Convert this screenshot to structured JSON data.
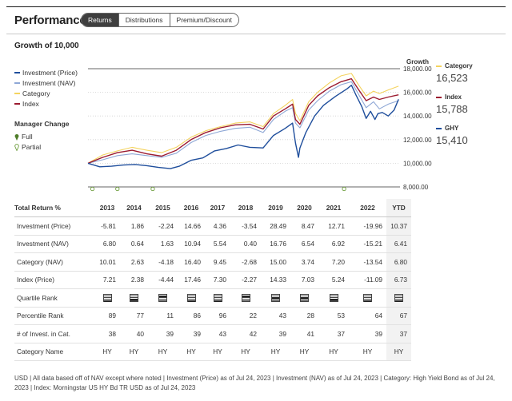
{
  "header": {
    "title": "Performance",
    "tabs": [
      {
        "label": "Returns",
        "active": true
      },
      {
        "label": "Distributions",
        "active": false
      },
      {
        "label": "Premium/Discount",
        "active": false
      }
    ]
  },
  "growth_title": "Growth of 10,000",
  "legend": [
    {
      "label": "Investment (Price)",
      "color": "#1f4e9c"
    },
    {
      "label": "Investment (NAV)",
      "color": "#8fa8d6"
    },
    {
      "label": "Category",
      "color": "#f4d35e"
    },
    {
      "label": "Index",
      "color": "#9b1b30"
    }
  ],
  "manager_change": {
    "title": "Manager Change",
    "full": "Full",
    "partial": "Partial",
    "full_color": "#4f7d2a",
    "partial_color": "#6b9c3a"
  },
  "axis_title": "Growth",
  "right_legend": [
    {
      "name": "Category",
      "value": "16,523",
      "color": "#f4d35e"
    },
    {
      "name": "Index",
      "value": "15,788",
      "color": "#9b1b30"
    },
    {
      "name": "GHY",
      "value": "15,410",
      "color": "#1f4e9c"
    }
  ],
  "chart_data": {
    "type": "line",
    "title": "Growth of 10,000",
    "ylabel": "Growth",
    "y_ticks": [
      "18,000.00",
      "16,000.00",
      "14,000.00",
      "12,000.00",
      "10,000.00",
      "8,000.00"
    ],
    "ylim": [
      8000,
      18000
    ],
    "x_range": [
      "2013-01",
      "2023-07"
    ],
    "series": [
      {
        "name": "Investment (Price)",
        "color": "#1f4e9c",
        "x": [
          2013.0,
          2013.4,
          2013.8,
          2014.2,
          2014.6,
          2015.0,
          2015.4,
          2015.8,
          2016.1,
          2016.5,
          2016.9,
          2017.3,
          2017.7,
          2018.1,
          2018.5,
          2018.95,
          2019.3,
          2019.7,
          2019.95,
          2020.05,
          2020.15,
          2020.2,
          2020.4,
          2020.7,
          2021.0,
          2021.4,
          2021.8,
          2021.95,
          2022.1,
          2022.3,
          2022.45,
          2022.6,
          2022.75,
          2022.85,
          2023.0,
          2023.2,
          2023.4,
          2023.55
        ],
        "values": [
          10000,
          9700,
          9750,
          9850,
          9900,
          9800,
          9650,
          9550,
          9750,
          10250,
          10450,
          11050,
          11250,
          11550,
          11350,
          11300,
          12350,
          12950,
          13400,
          11700,
          10500,
          11300,
          12600,
          14000,
          14900,
          15650,
          16300,
          16600,
          15800,
          14800,
          13800,
          14400,
          13700,
          14200,
          14300,
          14000,
          14500,
          15410
        ]
      },
      {
        "name": "Investment (NAV)",
        "color": "#8fa8d6",
        "x": [
          2013.0,
          2013.5,
          2014.0,
          2014.5,
          2015.0,
          2015.5,
          2016.0,
          2016.5,
          2017.0,
          2017.5,
          2018.0,
          2018.5,
          2018.95,
          2019.3,
          2019.7,
          2019.95,
          2020.05,
          2020.2,
          2020.5,
          2020.8,
          2021.2,
          2021.6,
          2021.95,
          2022.2,
          2022.45,
          2022.7,
          2022.9,
          2023.2,
          2023.55
        ],
        "values": [
          10000,
          10300,
          10650,
          10800,
          10650,
          10500,
          10850,
          11750,
          12350,
          12700,
          12950,
          13050,
          12600,
          13700,
          14400,
          14700,
          13400,
          13000,
          14500,
          15300,
          16100,
          16650,
          16900,
          15800,
          14700,
          15200,
          14600,
          15000,
          15300
        ]
      },
      {
        "name": "Category",
        "color": "#f4d35e",
        "x": [
          2013.0,
          2013.5,
          2014.0,
          2014.5,
          2015.0,
          2015.5,
          2016.0,
          2016.5,
          2017.0,
          2017.5,
          2018.0,
          2018.5,
          2018.95,
          2019.3,
          2019.7,
          2019.95,
          2020.05,
          2020.2,
          2020.5,
          2020.8,
          2021.2,
          2021.6,
          2021.95,
          2022.2,
          2022.45,
          2022.7,
          2022.9,
          2023.2,
          2023.55
        ],
        "values": [
          10000,
          10700,
          11050,
          11350,
          11100,
          10900,
          11350,
          12200,
          12750,
          13100,
          13400,
          13500,
          13100,
          14200,
          14900,
          15400,
          14200,
          13600,
          15200,
          16000,
          16800,
          17400,
          17600,
          16600,
          15700,
          16100,
          15900,
          16200,
          16523
        ]
      },
      {
        "name": "Index",
        "color": "#9b1b30",
        "x": [
          2013.0,
          2013.5,
          2014.0,
          2014.5,
          2015.0,
          2015.5,
          2016.0,
          2016.5,
          2017.0,
          2017.5,
          2018.0,
          2018.5,
          2018.95,
          2019.3,
          2019.7,
          2019.95,
          2020.05,
          2020.2,
          2020.5,
          2020.8,
          2021.2,
          2021.6,
          2021.95,
          2022.2,
          2022.45,
          2022.7,
          2022.9,
          2023.2,
          2023.55
        ],
        "values": [
          10000,
          10500,
          10900,
          11100,
          10800,
          10600,
          11100,
          12000,
          12600,
          13000,
          13250,
          13300,
          12900,
          14000,
          14600,
          15000,
          13700,
          13300,
          14900,
          15700,
          16400,
          16900,
          17150,
          16200,
          15300,
          15600,
          15400,
          15600,
          15788
        ]
      }
    ]
  },
  "table": {
    "header_label": "Total Return %",
    "columns": [
      "2013",
      "2014",
      "2015",
      "2016",
      "2017",
      "2018",
      "2019",
      "2020",
      "2021",
      "2022",
      "YTD"
    ],
    "rows": [
      {
        "label": "Investment (Price)",
        "values": [
          "-5.81",
          "1.86",
          "-2.24",
          "14.66",
          "4.36",
          "-3.54",
          "28.49",
          "8.47",
          "12.71",
          "-19.96",
          "10.37"
        ]
      },
      {
        "label": "Investment (NAV)",
        "values": [
          "6.80",
          "0.64",
          "1.63",
          "10.94",
          "5.54",
          "0.40",
          "16.76",
          "6.54",
          "6.92",
          "-15.21",
          "6.41"
        ]
      },
      {
        "label": "Category (NAV)",
        "values": [
          "10.01",
          "2.63",
          "-4.18",
          "16.40",
          "9.45",
          "-2.68",
          "15.00",
          "3.74",
          "7.20",
          "-13.54",
          "6.80"
        ]
      },
      {
        "label": "Index (Price)",
        "values": [
          "7.21",
          "2.38",
          "-4.44",
          "17.46",
          "7.30",
          "-2.27",
          "14.33",
          "7.03",
          "5.24",
          "-11.09",
          "6.73"
        ]
      },
      {
        "label": "Quartile Rank",
        "icon": "quartile-rank-icon",
        "quartiles": [
          4,
          3,
          1,
          4,
          4,
          1,
          2,
          2,
          3,
          4,
          4
        ]
      },
      {
        "label": "Percentile Rank",
        "values": [
          "89",
          "77",
          "11",
          "86",
          "96",
          "22",
          "43",
          "28",
          "53",
          "64",
          "67"
        ]
      },
      {
        "label": "# of Invest. in Cat.",
        "values": [
          "38",
          "40",
          "39",
          "39",
          "43",
          "42",
          "39",
          "41",
          "37",
          "39",
          "37"
        ]
      },
      {
        "label": "Category Name",
        "values": [
          "HY",
          "HY",
          "HY",
          "HY",
          "HY",
          "HY",
          "HY",
          "HY",
          "HY",
          "HY",
          "HY"
        ]
      }
    ]
  },
  "footnote": "USD | All data based off of NAV except where noted | Investment (Price) as of Jul 24, 2023 | Investment (NAV) as of Jul 24, 2023 | Category: High Yield Bond as of Jul 24, 2023 | Index: Morningstar US HY Bd TR USD as of Jul 24, 2023"
}
